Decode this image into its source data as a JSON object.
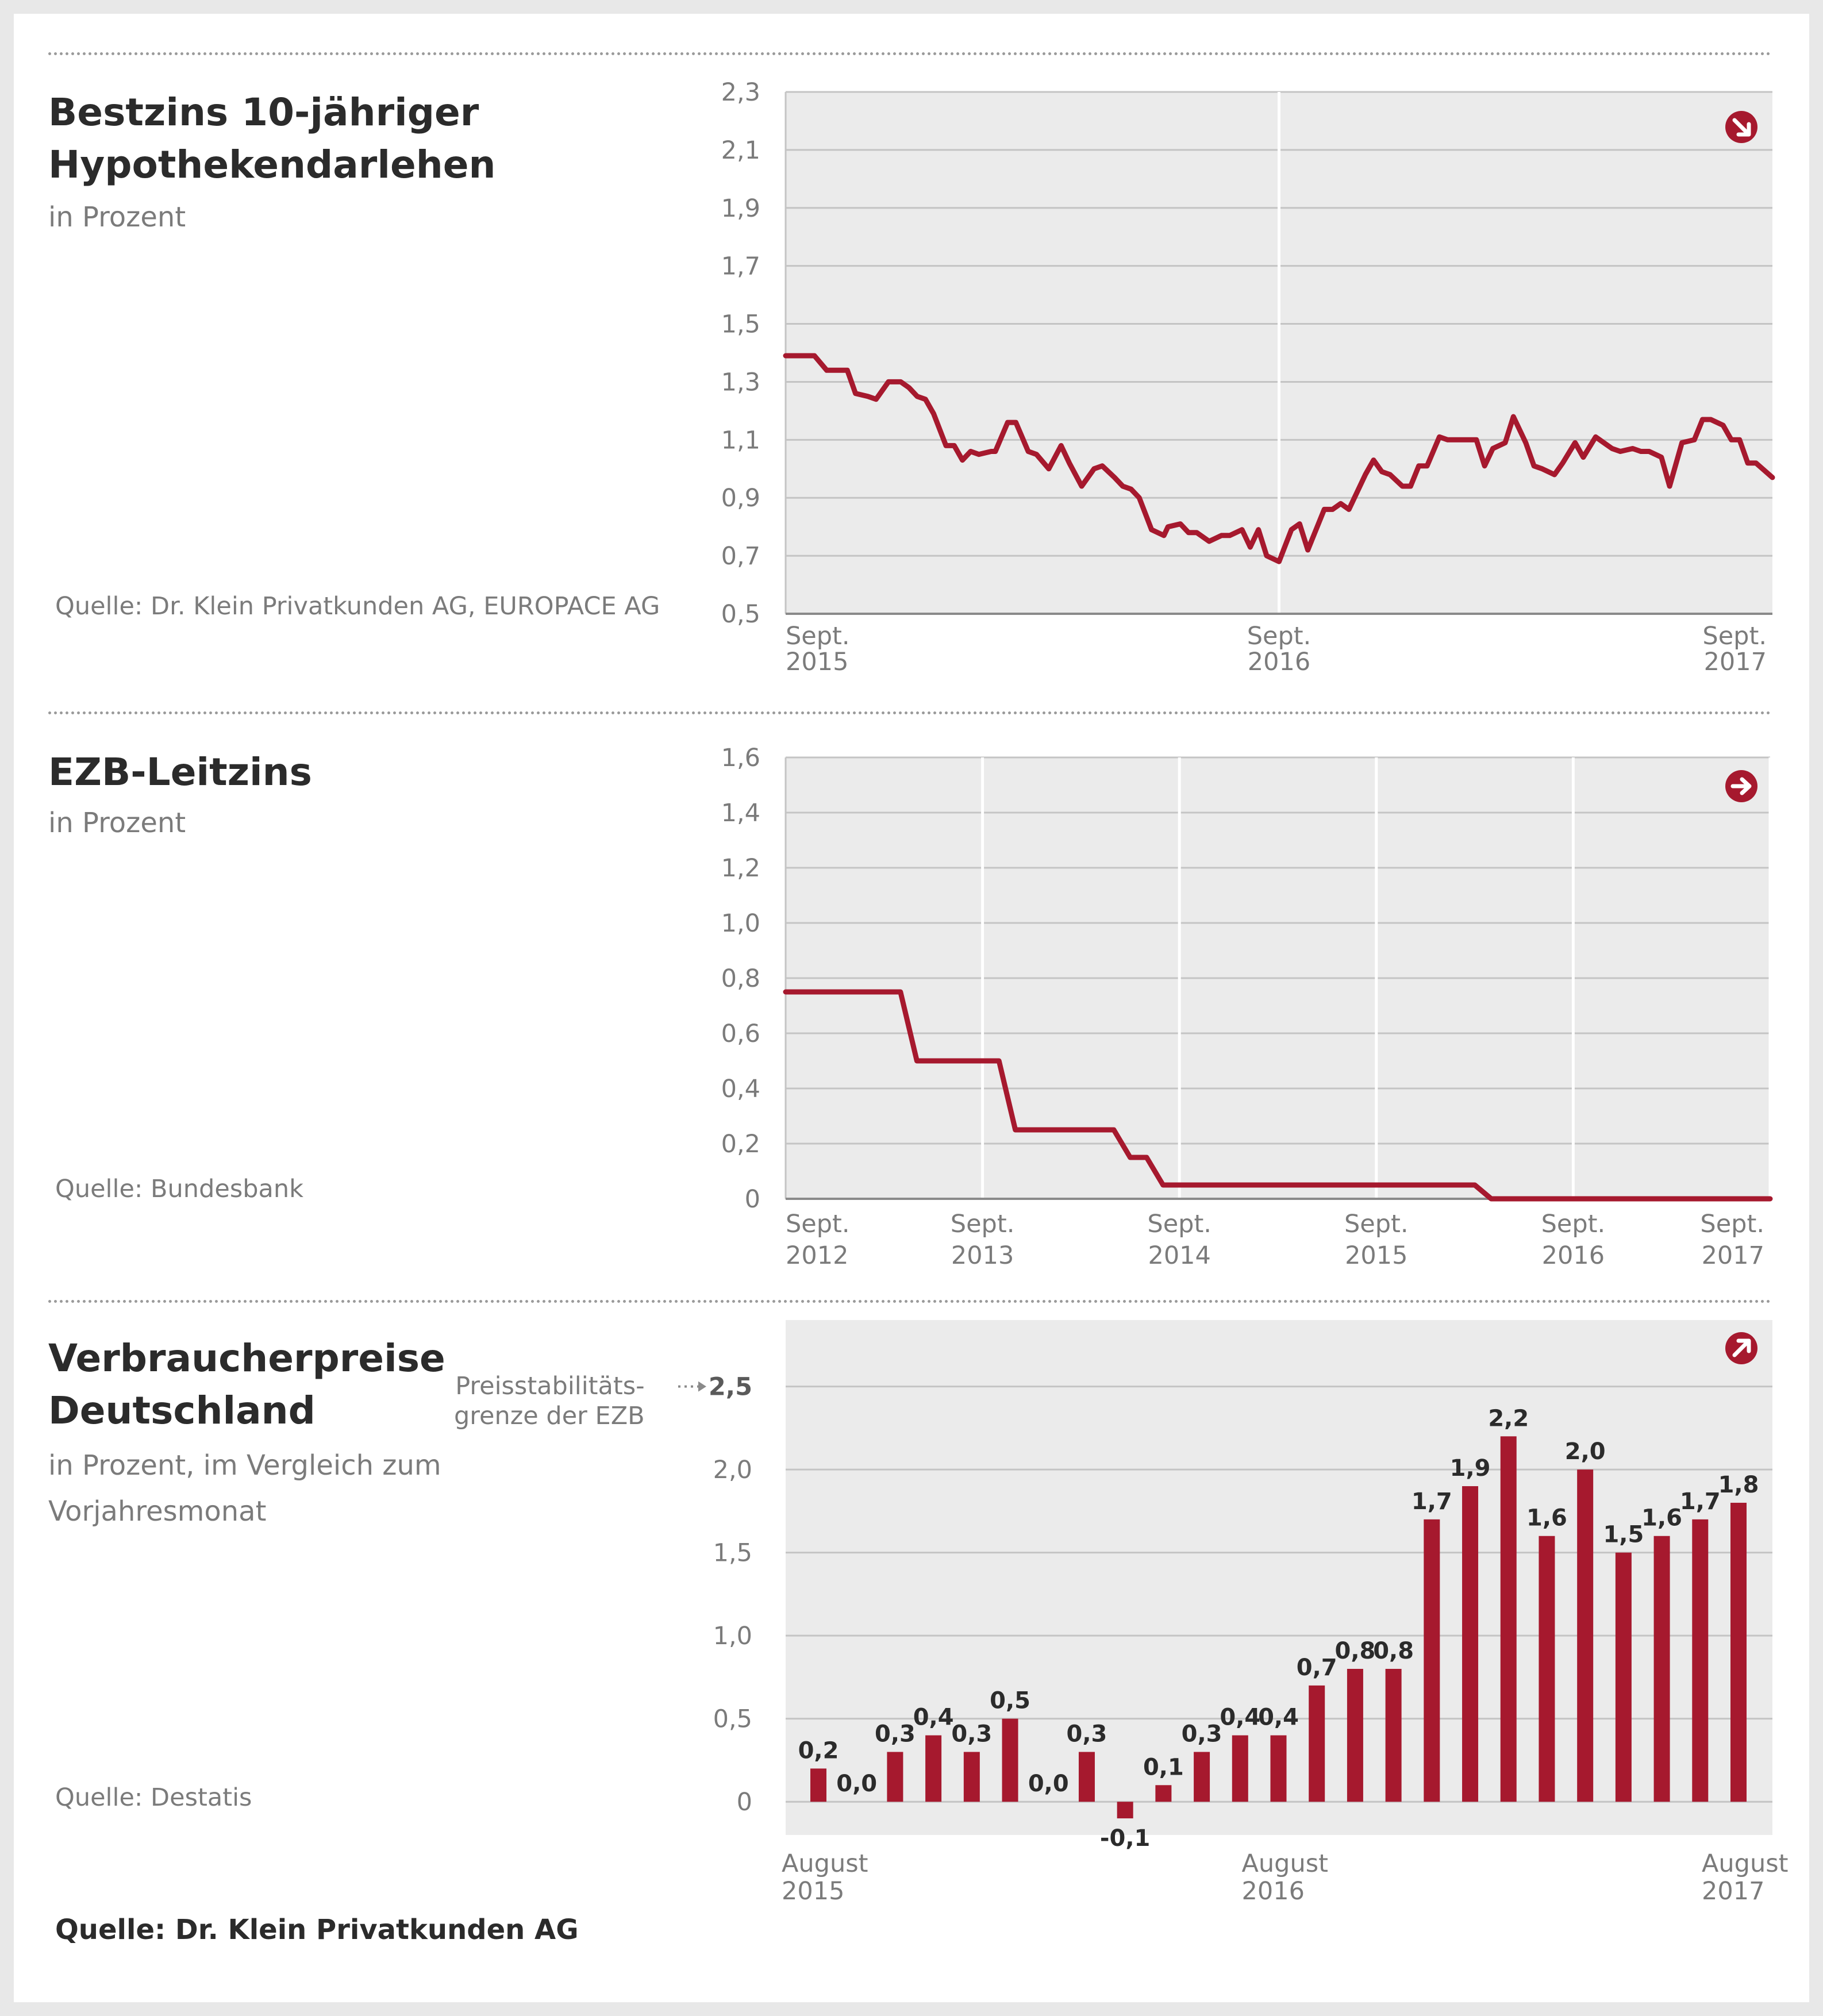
{
  "colors": {
    "series": "#a6192e",
    "plot_bg": "#ebebeb",
    "grid": "#c4c4c4",
    "text": "#2b2b2b",
    "muted": "#7b7b7b"
  },
  "footer": {
    "source": "Quelle: Dr. Klein Privatkunden AG"
  },
  "charts": [
    {
      "title": "Bestzins 10-jähriger Hypothekendarlehen",
      "subtitle": "in Prozent",
      "source": "Quelle: Dr. Klein Privatkunden AG, EUROPACE AG",
      "icon": "arrow-down-right-icon"
    },
    {
      "title": "EZB-Leitzins",
      "subtitle": "in Prozent",
      "source": "Quelle: Bundesbank",
      "icon": "arrow-right-icon"
    },
    {
      "title": "Verbraucherpreise Deutschland",
      "subtitle": "in Prozent, im Vergleich zum Vorjahresmonat",
      "source": "Quelle: Destatis",
      "icon": "arrow-up-right-icon",
      "reference_note": "Preisstabilitäts-\ngrenze der EZB"
    }
  ],
  "chart_data": [
    {
      "type": "line",
      "title": "Bestzins 10-jähriger Hypothekendarlehen",
      "ylabel": "in Prozent",
      "ylim": [
        0.5,
        2.3
      ],
      "yticks": [
        0.5,
        0.7,
        0.9,
        1.1,
        1.3,
        1.5,
        1.7,
        1.9,
        2.1,
        2.3
      ],
      "ytick_labels": [
        "0,5",
        "0,7",
        "0,9",
        "1,1",
        "1,3",
        "1,5",
        "1,7",
        "1,9",
        "2,1",
        "2,3"
      ],
      "xlim": [
        0,
        24
      ],
      "xticks": [
        0,
        12,
        24
      ],
      "xtick_labels": [
        [
          "Sept.",
          "2015"
        ],
        [
          "Sept.",
          "2016"
        ],
        [
          "Sept.",
          "2017"
        ]
      ],
      "vgrid": [
        12
      ],
      "grid": true,
      "series": [
        {
          "x": [
            0.0,
            0.5,
            0.7,
            1.0,
            1.1,
            1.5,
            1.7,
            2.0,
            2.2,
            2.5,
            2.8,
            3.0,
            3.2,
            3.4,
            3.6,
            3.9,
            4.1,
            4.3,
            4.5,
            4.7,
            5.0,
            5.1,
            5.4,
            5.6,
            5.9,
            6.1,
            6.4,
            6.7,
            6.9,
            7.2,
            7.5,
            7.7,
            8.0,
            8.2,
            8.4,
            8.6,
            8.9,
            9.2,
            9.3,
            9.6,
            9.8,
            10.0,
            10.3,
            10.6,
            10.8,
            11.1,
            11.3,
            11.5,
            11.7,
            12.0,
            12.3,
            12.5,
            12.7,
            13.1,
            13.3,
            13.5,
            13.7,
            14.1,
            14.3,
            14.5,
            14.7,
            15.0,
            15.2,
            15.4,
            15.6,
            15.9,
            16.1,
            16.3,
            16.6,
            16.8,
            17.0,
            17.2,
            17.5,
            17.7,
            18.0,
            18.2,
            18.4,
            18.7,
            18.9,
            19.2,
            19.4,
            19.7,
            19.9,
            20.1,
            20.3,
            20.6,
            20.8,
            21.0,
            21.3,
            21.5,
            21.8,
            22.1,
            22.3,
            22.5,
            22.8,
            23.0,
            23.2,
            23.4,
            23.6,
            24.0
          ],
          "values": [
            1.39,
            1.39,
            1.39,
            1.34,
            1.34,
            1.34,
            1.26,
            1.25,
            1.24,
            1.3,
            1.3,
            1.28,
            1.25,
            1.24,
            1.19,
            1.08,
            1.08,
            1.03,
            1.06,
            1.05,
            1.06,
            1.06,
            1.16,
            1.16,
            1.06,
            1.05,
            1.0,
            1.08,
            1.02,
            0.94,
            1.0,
            1.01,
            0.97,
            0.94,
            0.93,
            0.9,
            0.79,
            0.77,
            0.8,
            0.81,
            0.78,
            0.78,
            0.75,
            0.77,
            0.77,
            0.79,
            0.73,
            0.79,
            0.7,
            0.68,
            0.79,
            0.81,
            0.72,
            0.86,
            0.86,
            0.88,
            0.86,
            0.98,
            1.03,
            0.99,
            0.98,
            0.94,
            0.94,
            1.01,
            1.01,
            1.11,
            1.1,
            1.1,
            1.1,
            1.1,
            1.01,
            1.07,
            1.09,
            1.18,
            1.09,
            1.01,
            1.0,
            0.98,
            1.02,
            1.09,
            1.04,
            1.11,
            1.09,
            1.07,
            1.06,
            1.07,
            1.06,
            1.06,
            1.04,
            0.94,
            1.09,
            1.1,
            1.17,
            1.17,
            1.15,
            1.1,
            1.1,
            1.02,
            1.02,
            0.97
          ]
        }
      ]
    },
    {
      "type": "line",
      "title": "EZB-Leitzins",
      "ylabel": "in Prozent",
      "ylim": [
        0,
        1.6
      ],
      "yticks": [
        0,
        0.2,
        0.4,
        0.6,
        0.8,
        1.0,
        1.2,
        1.4,
        1.6
      ],
      "ytick_labels": [
        "0",
        "0,2",
        "0,4",
        "0,6",
        "0,8",
        "1,0",
        "1,2",
        "1,4",
        "1,6"
      ],
      "xlim": [
        0,
        60
      ],
      "xticks": [
        0,
        12,
        24,
        36,
        48,
        60
      ],
      "xtick_labels": [
        [
          "Sept.",
          "2012"
        ],
        [
          "Sept.",
          "2013"
        ],
        [
          "Sept.",
          "2014"
        ],
        [
          "Sept.",
          "2015"
        ],
        [
          "Sept.",
          "2016"
        ],
        [
          "Sept.",
          "2017"
        ]
      ],
      "vgrid": [
        12,
        24,
        36,
        48,
        60
      ],
      "grid": true,
      "series": [
        {
          "x": [
            0,
            7,
            8,
            13,
            14,
            20,
            21,
            22,
            23,
            24,
            25,
            42,
            43,
            60
          ],
          "values": [
            0.75,
            0.75,
            0.5,
            0.5,
            0.25,
            0.25,
            0.15,
            0.15,
            0.05,
            0.05,
            0.05,
            0.05,
            0.0,
            0.0
          ]
        }
      ]
    },
    {
      "type": "bar",
      "title": "Verbraucherpreise Deutschland",
      "ylabel": "in Prozent, im Vergleich zum Vorjahresmonat",
      "ylim": [
        -0.2,
        2.9
      ],
      "yticks": [
        0,
        0.5,
        1.0,
        1.5,
        2.0,
        2.5
      ],
      "ytick_labels": [
        "0",
        "0,5",
        "1,0",
        "1,5",
        "2,0",
        "2,5"
      ],
      "reference_line": {
        "value": 2.5,
        "label": "Preisstabilitäts- grenze der EZB"
      },
      "xtick_labels": [
        [
          "August",
          "2015"
        ],
        [
          "August",
          "2016"
        ],
        [
          "August",
          "2017"
        ]
      ],
      "xtick_index": [
        0,
        12,
        24
      ],
      "grid": true,
      "values": [
        0.2,
        0.0,
        0.3,
        0.4,
        0.3,
        0.5,
        0.0,
        0.3,
        -0.1,
        0.1,
        0.3,
        0.4,
        0.4,
        0.7,
        0.8,
        0.8,
        1.7,
        1.9,
        2.2,
        1.6,
        2.0,
        1.5,
        1.6,
        1.7,
        1.8
      ],
      "data_labels": [
        "0,2",
        "0,0",
        "0,3",
        "0,4",
        "0,3",
        "0,5",
        "0,0",
        "0,3",
        "-0,1",
        "0,1",
        "0,3",
        "0,4",
        "0,4",
        "0,7",
        "0,8",
        "0,8",
        "1,7",
        "1,9",
        "2,2",
        "1,6",
        "2,0",
        "1,5",
        "1,6",
        "1,7",
        "1,8"
      ]
    }
  ]
}
